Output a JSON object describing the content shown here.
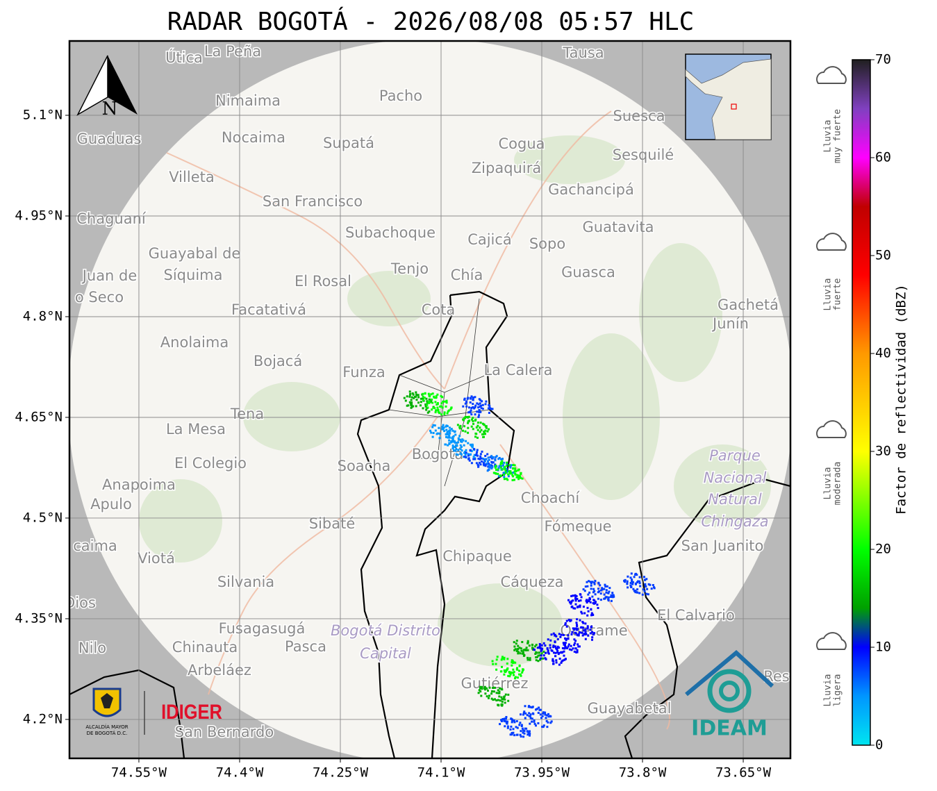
{
  "chart_data": {
    "type": "radar-map",
    "title": "RADAR BOGOTÁ - 2026/08/08 05:57 HLC",
    "xlim": [
      -74.6534,
      -73.5797
    ],
    "ylim": [
      4.142,
      5.2107
    ],
    "xticks": [
      {
        "value": -74.55,
        "label": "74.55°W"
      },
      {
        "value": -74.4,
        "label": "74.4°W"
      },
      {
        "value": -74.25,
        "label": "74.25°W"
      },
      {
        "value": -74.1,
        "label": "74.1°W"
      },
      {
        "value": -73.95,
        "label": "73.95°W"
      },
      {
        "value": -73.8,
        "label": "73.8°W"
      },
      {
        "value": -73.65,
        "label": "73.65°W"
      }
    ],
    "yticks": [
      {
        "value": 5.1,
        "label": "5.1°N"
      },
      {
        "value": 4.95,
        "label": "4.95°N"
      },
      {
        "value": 4.8,
        "label": "4.8°N"
      },
      {
        "value": 4.65,
        "label": "4.65°N"
      },
      {
        "value": 4.5,
        "label": "4.5°N"
      },
      {
        "value": 4.35,
        "label": "4.35°N"
      },
      {
        "value": 4.2,
        "label": "4.2°N"
      }
    ],
    "grid": true,
    "places": [
      "Útica",
      "La Peña",
      "Tausa",
      "Pacho",
      "Nimaima",
      "Guaduas",
      "Nocaima",
      "Supatá",
      "Cogua",
      "Suesca",
      "Sesquilé",
      "Zipaquirá",
      "Villeta",
      "Gachancipá",
      "San Francisco",
      "Chaguaní",
      "Guatavita",
      "Subachoque",
      "Cajicá",
      "Sopo",
      "Guayabal de",
      "Síquima",
      "Juan de",
      "Tenjo",
      "Chía",
      "Guasca",
      "El Rosal",
      "o Seco",
      "Facatativá",
      "Cota",
      "Gachetá",
      "Junín",
      "Anolaima",
      "Bojacá",
      "Funza",
      "La Calera",
      "Tena",
      "La Mesa",
      "El Colegio",
      "Soacha",
      "Bogotá",
      "Anapoima",
      "Apulo",
      "Choachí",
      "Sibaté",
      "Fómeque",
      "San Juanito",
      "caima",
      "Viotá",
      "Chipaque",
      "Silvania",
      "Cáqueza",
      "Dios",
      "El Calvario",
      "Fusagasugá",
      "Quetame",
      "Nilo",
      "Chinauta",
      "Pasca",
      "Arbeláez",
      "Gutiérrez",
      "Res",
      "Guayabetal",
      "San Bernardo"
    ],
    "park_labels": [
      "Parque",
      "Nacional",
      "Natural",
      "Chingaza",
      "Bogotá Distrito",
      "Capital"
    ],
    "echoes": {
      "lon": [
        -74.136,
        -74.11,
        -74.048,
        -74.095,
        -74.069,
        -74.043,
        -74.017,
        -74.002,
        -74.053,
        -73.971,
        -73.94,
        -73.919,
        -74.002,
        -73.888,
        -73.867,
        -73.807,
        -73.893,
        -74.022,
        -73.991,
        -73.96
      ],
      "lat": [
        4.674,
        4.672,
        4.667,
        4.625,
        4.604,
        4.589,
        4.579,
        4.57,
        4.637,
        4.304,
        4.299,
        4.315,
        4.279,
        4.372,
        4.392,
        4.403,
        4.335,
        4.237,
        4.191,
        4.206
      ],
      "dbz": [
        15,
        20,
        8,
        5,
        5,
        8,
        6,
        20,
        18,
        15,
        10,
        10,
        20,
        10,
        8,
        8,
        10,
        15,
        8,
        8
      ]
    },
    "colorbar": {
      "label": "Factor de reflectividad (dBZ)",
      "lim": [
        0,
        70
      ],
      "ticks": [
        0,
        10,
        20,
        30,
        40,
        50,
        60,
        70
      ],
      "stops": [
        [
          0,
          "#00e5f0"
        ],
        [
          5,
          "#0096ff"
        ],
        [
          10,
          "#0000ff"
        ],
        [
          14,
          "#00a000"
        ],
        [
          20,
          "#00ff00"
        ],
        [
          30,
          "#ffff00"
        ],
        [
          40,
          "#ff9900"
        ],
        [
          48,
          "#ff0000"
        ],
        [
          55,
          "#c00000"
        ],
        [
          60,
          "#ff00ff"
        ],
        [
          65,
          "#8040c0"
        ],
        [
          70,
          "#202020"
        ]
      ]
    },
    "rain_levels": [
      [
        "Lluvia",
        "muy fuerte"
      ],
      [
        "Lluvia",
        "fuerte"
      ],
      [
        "Lluvia",
        "moderada"
      ],
      [
        "Lluvia",
        "ligera"
      ]
    ],
    "north": "N",
    "logos": [
      "ALCALDÍA MAYOR",
      "DE BOGOTÁ D.C.",
      "IDIGER",
      "IDEAM"
    ]
  }
}
